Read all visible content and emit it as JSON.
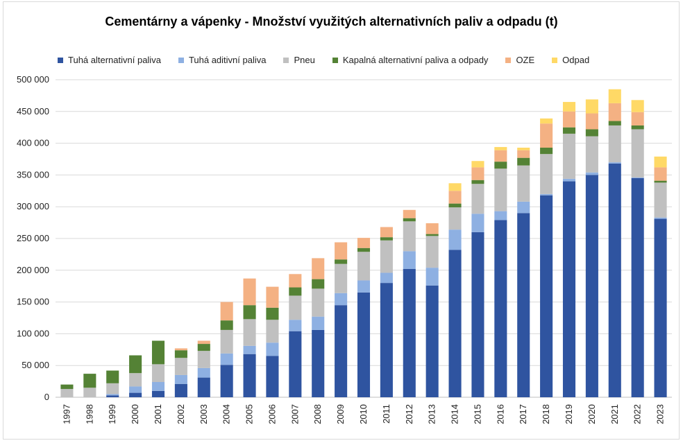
{
  "chart_data": {
    "type": "bar",
    "stacked": true,
    "title": "Cementárny a vápenky - Množství využitých alternativních paliv a odpadu (t)",
    "xlabel": "",
    "ylabel": "",
    "ylim": [
      0,
      500000
    ],
    "yticks": [
      0,
      50000,
      100000,
      150000,
      200000,
      250000,
      300000,
      350000,
      400000,
      450000,
      500000
    ],
    "ytick_labels": [
      "0",
      "50 000",
      "100 000",
      "150 000",
      "200 000",
      "250 000",
      "300 000",
      "350 000",
      "400 000",
      "450 000",
      "500 000"
    ],
    "grid": true,
    "legend_position": "top",
    "categories": [
      "1997",
      "1998",
      "1999",
      "2000",
      "2001",
      "2002",
      "2003",
      "2004",
      "2005",
      "2006",
      "2007",
      "2008",
      "2009",
      "2010",
      "2011",
      "2012",
      "2013",
      "2014",
      "2015",
      "2016",
      "2017",
      "2018",
      "2019",
      "2020",
      "2021",
      "2022",
      "2023"
    ],
    "series": [
      {
        "name": "Tuhá alternativní paliva",
        "color": "#2f54a0",
        "values": [
          0,
          0,
          3000,
          7000,
          10000,
          21000,
          31000,
          51000,
          68000,
          65000,
          104000,
          106000,
          145000,
          165000,
          180000,
          202000,
          176000,
          232000,
          260000,
          279000,
          290000,
          318000,
          340000,
          350000,
          368000,
          345000,
          281000
        ]
      },
      {
        "name": "Tuhá aditivní paliva",
        "color": "#8eb0e2",
        "values": [
          0,
          0,
          2000,
          10000,
          14000,
          14000,
          15000,
          18000,
          13000,
          21000,
          18000,
          21000,
          19000,
          19000,
          16000,
          28000,
          28000,
          32000,
          29000,
          14000,
          18000,
          2000,
          4000,
          4000,
          2000,
          1000,
          2000
        ]
      },
      {
        "name": "Pneu",
        "color": "#c0c0c0",
        "values": [
          13000,
          15000,
          17000,
          21000,
          28000,
          27000,
          27000,
          37000,
          42000,
          36000,
          38000,
          44000,
          46000,
          45000,
          51000,
          47000,
          50000,
          35000,
          47000,
          67000,
          57000,
          63000,
          71000,
          57000,
          58000,
          76000,
          55000
        ]
      },
      {
        "name": "Kapalná alternativní paliva a odpady",
        "color": "#548235",
        "values": [
          7000,
          22000,
          20000,
          28000,
          37000,
          12000,
          11000,
          15000,
          22000,
          19000,
          13000,
          15000,
          7000,
          6000,
          5000,
          5000,
          3000,
          6000,
          6000,
          11000,
          12000,
          10000,
          10000,
          11000,
          7000,
          6000,
          3000
        ]
      },
      {
        "name": "OZE",
        "color": "#f4b183",
        "values": [
          0,
          0,
          0,
          0,
          0,
          3000,
          5000,
          29000,
          42000,
          33000,
          21000,
          33000,
          27000,
          16000,
          16000,
          13000,
          17000,
          20000,
          20000,
          18000,
          12000,
          38000,
          25000,
          25000,
          28000,
          21000,
          21000
        ]
      },
      {
        "name": "Odpad",
        "color": "#ffd966",
        "values": [
          0,
          0,
          0,
          0,
          0,
          0,
          0,
          0,
          0,
          0,
          0,
          0,
          0,
          0,
          0,
          0,
          0,
          12000,
          10000,
          5000,
          4000,
          8000,
          15000,
          22000,
          22000,
          19000,
          17000
        ]
      }
    ]
  }
}
